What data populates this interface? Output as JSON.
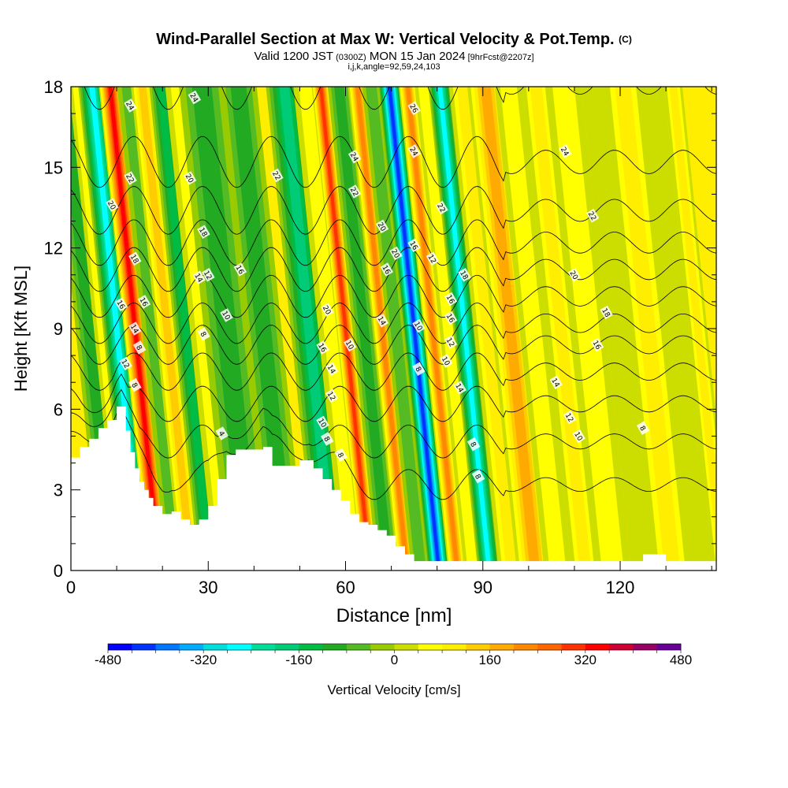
{
  "chart_data": {
    "type": "heatmap",
    "title": "Wind-Parallel Section at Max W: Vertical Velocity & Pot.Temp.",
    "title_mark": "(C)",
    "subtitle_parts": [
      "Valid 1200 JST",
      "(0300Z)",
      "MON 15 Jan 2024",
      "[9hrFcst@2207z]"
    ],
    "subtitle2": "i,j,k,angle=92,59,24,103",
    "xlabel": "Distance [nm]",
    "ylabel": "Height [Kft MSL]",
    "xlim": [
      0,
      141
    ],
    "ylim": [
      0,
      18
    ],
    "x_ticks": [
      0,
      30,
      60,
      90,
      120
    ],
    "x_minor_ticks": [
      10,
      20,
      40,
      50,
      70,
      80,
      100,
      110,
      130,
      140
    ],
    "y_ticks": [
      0,
      3,
      6,
      9,
      12,
      15,
      18
    ],
    "y_minor_ticks": [
      1,
      2,
      4,
      5,
      7,
      8,
      10,
      11,
      13,
      14,
      16,
      17
    ],
    "colorbar": {
      "label": "Vertical Velocity [cm/s]",
      "min": -480,
      "max": 480,
      "step": 40,
      "tick_values": [
        -480,
        -320,
        -160,
        0,
        160,
        320,
        480
      ],
      "tick_labels": [
        "-480",
        "-320",
        "-160",
        "0",
        "160",
        "320",
        "480"
      ],
      "colors": [
        "#0000ff",
        "#0033ff",
        "#0077ff",
        "#00aaff",
        "#00dddd",
        "#00ffff",
        "#00dd99",
        "#00cc77",
        "#00bb44",
        "#22aa22",
        "#55bb22",
        "#99cc00",
        "#ccdd00",
        "#ffff00",
        "#ffee00",
        "#ffcc00",
        "#ffaa00",
        "#ff8800",
        "#ff6600",
        "#ff3300",
        "#ff0000",
        "#cc0033",
        "#990066",
        "#660099"
      ]
    },
    "vertical_velocity_bands": [
      {
        "x": 4,
        "w": 3,
        "v": -100
      },
      {
        "x": 7,
        "w": 2,
        "v": 80
      },
      {
        "x": 10,
        "w": 3,
        "v": -260
      },
      {
        "x": 14,
        "w": 2.5,
        "v": 330
      },
      {
        "x": 18,
        "w": 2.5,
        "v": -60
      },
      {
        "x": 21,
        "w": 2.5,
        "v": 140
      },
      {
        "x": 25,
        "w": 2.5,
        "v": -140
      },
      {
        "x": 29,
        "w": 3,
        "v": 60
      },
      {
        "x": 34,
        "w": 5,
        "v": -90
      },
      {
        "x": 42,
        "w": 4,
        "v": -100
      },
      {
        "x": 52,
        "w": 4,
        "v": -170
      },
      {
        "x": 57,
        "w": 3,
        "v": 60
      },
      {
        "x": 60,
        "w": 2,
        "v": 320
      },
      {
        "x": 64,
        "w": 2.5,
        "v": -90
      },
      {
        "x": 68,
        "w": 2,
        "v": 230
      },
      {
        "x": 71,
        "w": 2,
        "v": -60
      },
      {
        "x": 75,
        "w": 2.5,
        "v": -420
      },
      {
        "x": 79,
        "w": 2,
        "v": 240
      },
      {
        "x": 82.5,
        "w": 2,
        "v": 60
      },
      {
        "x": 86,
        "w": 2.5,
        "v": -260
      },
      {
        "x": 91,
        "w": 3,
        "v": 100
      },
      {
        "x": 96,
        "w": 4,
        "v": 170
      },
      {
        "x": 101,
        "w": 3,
        "v": 60
      },
      {
        "x": 107,
        "w": 3,
        "v": 100
      },
      {
        "x": 113,
        "w": 4,
        "v": 80
      },
      {
        "x": 120,
        "w": 3,
        "v": 40
      },
      {
        "x": 126,
        "w": 4,
        "v": 120
      },
      {
        "x": 132,
        "w": 3,
        "v": 40
      },
      {
        "x": 137,
        "w": 2,
        "v": 100
      }
    ],
    "terrain": {
      "x": [
        0,
        2,
        4,
        6,
        8,
        10,
        11,
        12,
        13,
        14,
        15,
        16,
        17,
        18,
        20,
        22,
        24,
        26,
        28,
        30,
        32,
        34,
        36,
        38,
        40,
        42,
        44,
        46,
        48,
        50,
        52,
        53,
        55,
        57,
        59,
        61,
        63,
        65,
        67,
        69,
        71,
        73,
        75,
        77,
        80,
        90,
        100,
        110,
        120,
        125,
        127,
        130,
        132,
        141
      ],
      "h": [
        4.2,
        4.6,
        4.9,
        5.3,
        5.6,
        6.1,
        6.1,
        5.2,
        4.4,
        3.8,
        3.3,
        3.0,
        2.7,
        2.4,
        2.1,
        2.2,
        1.9,
        1.7,
        1.9,
        2.4,
        3.4,
        4.3,
        4.5,
        4.5,
        4.5,
        4.6,
        3.9,
        3.9,
        3.9,
        4.1,
        4.1,
        3.8,
        3.4,
        3.0,
        2.6,
        2.1,
        1.8,
        1.7,
        1.5,
        1.3,
        0.9,
        0.6,
        0.35,
        0.35,
        0.35,
        0.35,
        0.35,
        0.35,
        0.35,
        0.6,
        0.6,
        0.35,
        0.35,
        0.35
      ]
    },
    "theta_contours": {
      "levels": [
        4,
        6,
        8,
        10,
        12,
        14,
        16,
        18,
        20,
        22,
        24,
        26
      ],
      "base_heights": [
        3.2,
        4.8,
        6.2,
        7.4,
        8.4,
        9.2,
        10.2,
        11.2,
        12.2,
        13.4,
        15.2,
        18.2
      ],
      "labels": [
        {
          "x": 33,
          "y": 5.1,
          "t": "4"
        },
        {
          "x": 29,
          "y": 8.8,
          "t": "8"
        },
        {
          "x": 30,
          "y": 11.0,
          "t": "12"
        },
        {
          "x": 56,
          "y": 9.7,
          "t": "20"
        },
        {
          "x": 61,
          "y": 8.4,
          "t": "10"
        },
        {
          "x": 69,
          "y": 11.2,
          "t": "16"
        },
        {
          "x": 68,
          "y": 9.3,
          "t": "14"
        },
        {
          "x": 76,
          "y": 9.1,
          "t": "10"
        },
        {
          "x": 76,
          "y": 7.5,
          "t": "8"
        },
        {
          "x": 79,
          "y": 11.6,
          "t": "12"
        },
        {
          "x": 86,
          "y": 11.0,
          "t": "18"
        },
        {
          "x": 110,
          "y": 11.0,
          "t": "20"
        },
        {
          "x": 114,
          "y": 13.2,
          "t": "22"
        },
        {
          "x": 108,
          "y": 15.6,
          "t": "24"
        },
        {
          "x": 117,
          "y": 9.6,
          "t": "18"
        },
        {
          "x": 115,
          "y": 8.4,
          "t": "16"
        },
        {
          "x": 106,
          "y": 7.0,
          "t": "14"
        },
        {
          "x": 109,
          "y": 5.7,
          "t": "12"
        },
        {
          "x": 111,
          "y": 5.0,
          "t": "10"
        },
        {
          "x": 125,
          "y": 5.3,
          "t": "8"
        },
        {
          "x": 89,
          "y": 3.5,
          "t": "8"
        },
        {
          "x": 88,
          "y": 4.7,
          "t": "8"
        },
        {
          "x": 85,
          "y": 6.8,
          "t": "14"
        },
        {
          "x": 82,
          "y": 7.8,
          "t": "10"
        },
        {
          "x": 83,
          "y": 8.5,
          "t": "12"
        },
        {
          "x": 83,
          "y": 9.4,
          "t": "16"
        },
        {
          "x": 83,
          "y": 10.1,
          "t": "16"
        },
        {
          "x": 81,
          "y": 13.5,
          "t": "22"
        },
        {
          "x": 75,
          "y": 12.1,
          "t": "16"
        },
        {
          "x": 71,
          "y": 11.8,
          "t": "20"
        },
        {
          "x": 68,
          "y": 12.8,
          "t": "20"
        },
        {
          "x": 62,
          "y": 14.1,
          "t": "22"
        },
        {
          "x": 62,
          "y": 15.4,
          "t": "24"
        },
        {
          "x": 75,
          "y": 15.6,
          "t": "24"
        },
        {
          "x": 75,
          "y": 17.2,
          "t": "26"
        },
        {
          "x": 45,
          "y": 14.7,
          "t": "22"
        },
        {
          "x": 37,
          "y": 11.2,
          "t": "16"
        },
        {
          "x": 34,
          "y": 9.5,
          "t": "10"
        },
        {
          "x": 57,
          "y": 7.5,
          "t": "14"
        },
        {
          "x": 57,
          "y": 6.5,
          "t": "12"
        },
        {
          "x": 55,
          "y": 8.3,
          "t": "16"
        },
        {
          "x": 55,
          "y": 5.5,
          "t": "10"
        },
        {
          "x": 56,
          "y": 4.9,
          "t": "8"
        },
        {
          "x": 59,
          "y": 4.3,
          "t": "8"
        },
        {
          "x": 27,
          "y": 17.6,
          "t": "24"
        },
        {
          "x": 26,
          "y": 14.6,
          "t": "20"
        },
        {
          "x": 29,
          "y": 12.6,
          "t": "18"
        },
        {
          "x": 28,
          "y": 10.9,
          "t": "14"
        },
        {
          "x": 13,
          "y": 17.3,
          "t": "24"
        },
        {
          "x": 13,
          "y": 14.6,
          "t": "22"
        },
        {
          "x": 9,
          "y": 13.6,
          "t": "20"
        },
        {
          "x": 14,
          "y": 11.6,
          "t": "18"
        },
        {
          "x": 11,
          "y": 9.9,
          "t": "16"
        },
        {
          "x": 16,
          "y": 10.0,
          "t": "16"
        },
        {
          "x": 14,
          "y": 9.0,
          "t": "14"
        },
        {
          "x": 15,
          "y": 8.3,
          "t": "8"
        },
        {
          "x": 12,
          "y": 7.7,
          "t": "12"
        },
        {
          "x": 14,
          "y": 6.9,
          "t": "8"
        }
      ]
    },
    "grid": false
  }
}
